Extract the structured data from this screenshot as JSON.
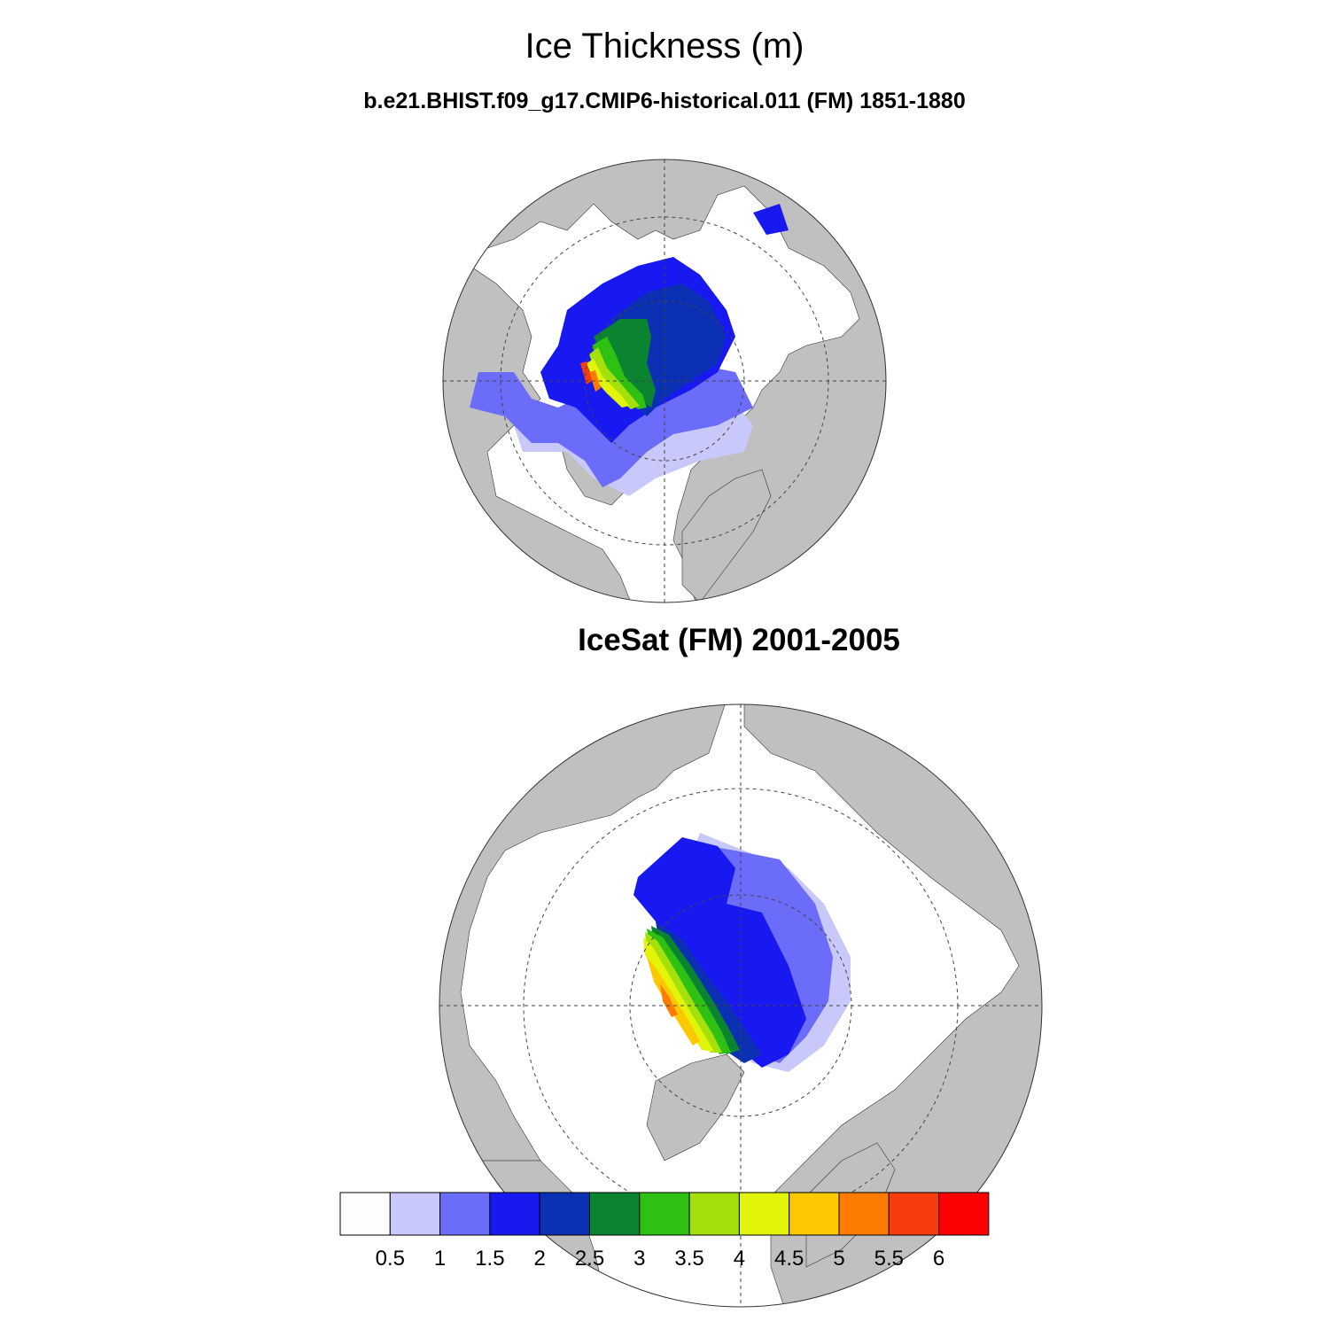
{
  "chart_data": [
    {
      "type": "heatmap",
      "projection": "north polar stereographic",
      "title": "Ice Thickness (m)",
      "subtitle": "b.e21.BHIST.f09_g17.CMIP6-historical.011 (FM) 1851-1880",
      "grid": true
    },
    {
      "type": "heatmap",
      "projection": "north polar stereographic",
      "title": "",
      "subtitle": "IceSat (FM) 2001-2005",
      "grid": true
    }
  ],
  "colorbar": {
    "levels": [
      "0.5",
      "1",
      "1.5",
      "2",
      "2.5",
      "3",
      "3.5",
      "4",
      "4.5",
      "5",
      "5.5",
      "6"
    ],
    "colors": [
      "#fdfdfd",
      "#c8c8fa",
      "#6c6cfa",
      "#1818f0",
      "#0c30b4",
      "#0a8430",
      "#2ec012",
      "#a4e00c",
      "#e2f40a",
      "#fdc800",
      "#fd7c00",
      "#f83c0c",
      "#fd0000"
    ]
  },
  "colors": {
    "land": "#c0c0c0",
    "ocean": "#ffffff"
  }
}
